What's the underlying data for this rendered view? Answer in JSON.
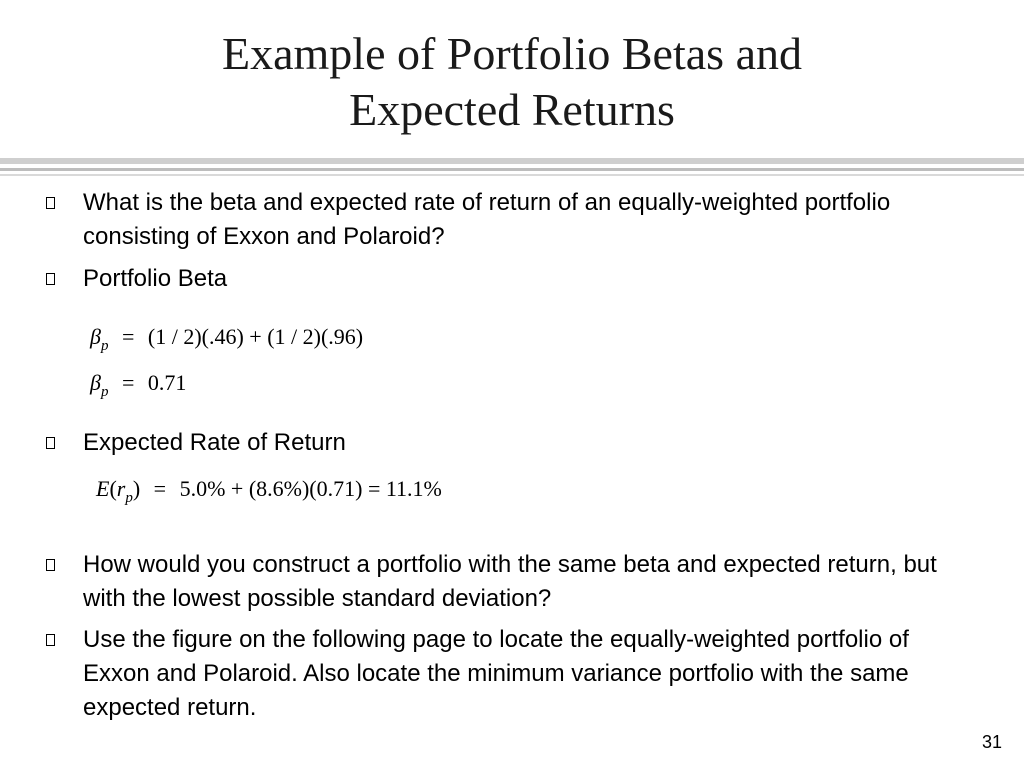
{
  "slide": {
    "title_line1": "Example of Portfolio Betas and",
    "title_line2": "Expected Returns",
    "page_number": "31"
  },
  "bullets": [
    "What is the beta and expected rate of return of an equally-weighted portfolio consisting of Exxon and Polaroid?",
    "Portfolio Beta",
    "Expected Rate of Return",
    "How would you construct a portfolio with the same beta and expected return, but with the lowest possible standard deviation?",
    "Use the figure on the following page to locate the equally-weighted portfolio of Exxon and Polaroid.  Also locate the minimum variance portfolio with the same expected return."
  ],
  "equations": {
    "beta_eq1": {
      "lhs_symbol": "β",
      "lhs_sub": "p",
      "equals": "=",
      "rhs": "(1 / 2)(.46) + (1 / 2)(.96)"
    },
    "beta_eq2": {
      "lhs_symbol": "β",
      "lhs_sub": "p",
      "equals": "=",
      "rhs": "0.71"
    },
    "return_eq": {
      "E": "E",
      "open": "(",
      "r": "r",
      "sub": "p",
      "close": ")",
      "equals": "=",
      "rhs": "5.0% + (8.6%)(0.71) = 11.1%"
    }
  }
}
